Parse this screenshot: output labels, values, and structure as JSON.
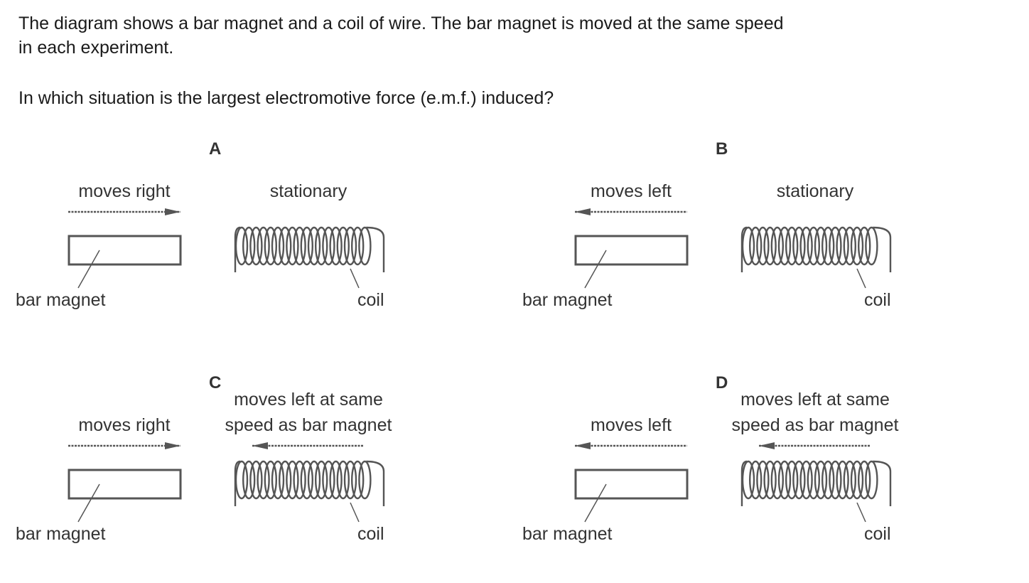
{
  "question": {
    "line1": "The diagram shows a bar magnet and a coil of wire. The bar magnet is moved at the same speed",
    "line2": "in each experiment.",
    "line3": "In which situation is the largest electromotive force (e.m.f.) induced?"
  },
  "options": [
    {
      "letter": "A",
      "magnet_motion": "moves right",
      "magnet_direction": "right",
      "coil_motion_line1": "",
      "coil_motion_line2": "stationary",
      "coil_moves": false,
      "magnet_label": "bar magnet",
      "coil_label": "coil"
    },
    {
      "letter": "B",
      "magnet_motion": "moves left",
      "magnet_direction": "left",
      "coil_motion_line1": "",
      "coil_motion_line2": "stationary",
      "coil_moves": false,
      "magnet_label": "bar magnet",
      "coil_label": "coil"
    },
    {
      "letter": "C",
      "magnet_motion": "moves right",
      "magnet_direction": "right",
      "coil_motion_line1": "moves left at same",
      "coil_motion_line2": "speed as bar magnet",
      "coil_moves": true,
      "magnet_label": "bar magnet",
      "coil_label": "coil"
    },
    {
      "letter": "D",
      "magnet_motion": "moves left",
      "magnet_direction": "left",
      "coil_motion_line1": "moves left at same",
      "coil_motion_line2": "speed as bar magnet",
      "coil_moves": true,
      "magnet_label": "bar magnet",
      "coil_label": "coil"
    }
  ]
}
